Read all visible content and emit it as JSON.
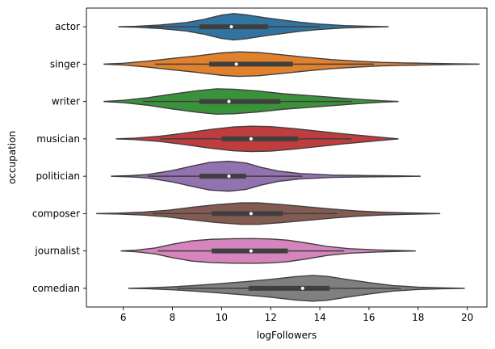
{
  "chart_data": {
    "type": "violin",
    "title": "",
    "xlabel": "logFollowers",
    "ylabel": "occupation",
    "xlim": [
      4.5,
      20.8
    ],
    "xticks": [
      6,
      8,
      10,
      12,
      14,
      16,
      18,
      20
    ],
    "grid": false,
    "categories": [
      "actor",
      "singer",
      "writer",
      "musician",
      "politician",
      "composer",
      "journalist",
      "comedian"
    ],
    "series": [
      {
        "category": "actor",
        "color": "#3274a1",
        "min": 5.8,
        "max": 16.8,
        "q1": 9.1,
        "median": 10.4,
        "q3": 11.9,
        "whisker_low": 7.0,
        "whisker_high": 14.0,
        "density": [
          [
            5.8,
            0.0
          ],
          [
            6.5,
            0.03
          ],
          [
            7.5,
            0.12
          ],
          [
            8.5,
            0.27
          ],
          [
            9.3,
            0.5
          ],
          [
            10.0,
            0.78
          ],
          [
            10.5,
            0.88
          ],
          [
            11.0,
            0.8
          ],
          [
            11.8,
            0.6
          ],
          [
            12.5,
            0.45
          ],
          [
            13.2,
            0.3
          ],
          [
            14.0,
            0.18
          ],
          [
            15.0,
            0.08
          ],
          [
            16.0,
            0.03
          ],
          [
            16.8,
            0.0
          ]
        ]
      },
      {
        "category": "singer",
        "color": "#e1812c",
        "min": 5.2,
        "max": 20.5,
        "q1": 9.5,
        "median": 10.6,
        "q3": 12.9,
        "whisker_low": 7.3,
        "whisker_high": 16.2,
        "density": [
          [
            5.2,
            0.0
          ],
          [
            6.0,
            0.06
          ],
          [
            7.0,
            0.2
          ],
          [
            8.0,
            0.38
          ],
          [
            9.0,
            0.55
          ],
          [
            10.0,
            0.75
          ],
          [
            10.7,
            0.82
          ],
          [
            11.5,
            0.78
          ],
          [
            12.5,
            0.62
          ],
          [
            13.5,
            0.45
          ],
          [
            14.5,
            0.3
          ],
          [
            15.5,
            0.2
          ],
          [
            16.5,
            0.12
          ],
          [
            17.5,
            0.08
          ],
          [
            18.5,
            0.05
          ],
          [
            19.5,
            0.02
          ],
          [
            20.5,
            0.0
          ]
        ]
      },
      {
        "category": "writer",
        "color": "#3a923a",
        "min": 5.2,
        "max": 17.2,
        "q1": 9.1,
        "median": 10.3,
        "q3": 12.4,
        "whisker_low": 6.8,
        "whisker_high": 15.3,
        "density": [
          [
            5.2,
            0.0
          ],
          [
            6.0,
            0.08
          ],
          [
            7.0,
            0.25
          ],
          [
            8.0,
            0.5
          ],
          [
            9.0,
            0.72
          ],
          [
            9.8,
            0.85
          ],
          [
            10.5,
            0.82
          ],
          [
            11.5,
            0.7
          ],
          [
            12.5,
            0.52
          ],
          [
            13.5,
            0.4
          ],
          [
            14.5,
            0.28
          ],
          [
            15.5,
            0.15
          ],
          [
            16.5,
            0.05
          ],
          [
            17.2,
            0.0
          ]
        ]
      },
      {
        "category": "musician",
        "color": "#c03d3e",
        "min": 5.7,
        "max": 17.2,
        "q1": 10.0,
        "median": 11.2,
        "q3": 13.1,
        "whisker_low": 7.5,
        "whisker_high": 15.3,
        "density": [
          [
            5.7,
            0.0
          ],
          [
            6.5,
            0.05
          ],
          [
            7.5,
            0.18
          ],
          [
            8.5,
            0.38
          ],
          [
            9.5,
            0.62
          ],
          [
            10.5,
            0.8
          ],
          [
            11.2,
            0.85
          ],
          [
            12.0,
            0.82
          ],
          [
            13.0,
            0.68
          ],
          [
            14.0,
            0.5
          ],
          [
            15.0,
            0.33
          ],
          [
            16.0,
            0.18
          ],
          [
            16.8,
            0.06
          ],
          [
            17.2,
            0.0
          ]
        ]
      },
      {
        "category": "politician",
        "color": "#9372b2",
        "min": 5.5,
        "max": 18.1,
        "q1": 9.1,
        "median": 10.3,
        "q3": 11.0,
        "whisker_low": 7.0,
        "whisker_high": 13.3,
        "density": [
          [
            5.5,
            0.0
          ],
          [
            6.3,
            0.04
          ],
          [
            7.0,
            0.12
          ],
          [
            8.0,
            0.38
          ],
          [
            8.8,
            0.68
          ],
          [
            9.5,
            0.92
          ],
          [
            10.3,
            1.0
          ],
          [
            11.0,
            0.88
          ],
          [
            11.6,
            0.6
          ],
          [
            12.3,
            0.35
          ],
          [
            13.2,
            0.18
          ],
          [
            14.5,
            0.08
          ],
          [
            16.0,
            0.04
          ],
          [
            17.2,
            0.02
          ],
          [
            18.1,
            0.0
          ]
        ]
      },
      {
        "category": "composer",
        "color": "#845b53",
        "min": 4.9,
        "max": 18.9,
        "q1": 9.6,
        "median": 11.2,
        "q3": 12.5,
        "whisker_low": 7.2,
        "whisker_high": 14.7,
        "density": [
          [
            4.9,
            0.0
          ],
          [
            5.8,
            0.03
          ],
          [
            6.8,
            0.1
          ],
          [
            7.8,
            0.22
          ],
          [
            8.8,
            0.42
          ],
          [
            9.8,
            0.6
          ],
          [
            10.8,
            0.72
          ],
          [
            11.5,
            0.72
          ],
          [
            12.5,
            0.6
          ],
          [
            13.5,
            0.45
          ],
          [
            14.5,
            0.3
          ],
          [
            15.5,
            0.18
          ],
          [
            16.5,
            0.1
          ],
          [
            17.5,
            0.05
          ],
          [
            18.3,
            0.02
          ],
          [
            18.9,
            0.0
          ]
        ]
      },
      {
        "category": "journalist",
        "color": "#d684bd",
        "min": 5.9,
        "max": 17.9,
        "q1": 9.6,
        "median": 11.2,
        "q3": 12.7,
        "whisker_low": 7.4,
        "whisker_high": 15.0,
        "density": [
          [
            5.9,
            0.0
          ],
          [
            6.5,
            0.05
          ],
          [
            7.3,
            0.2
          ],
          [
            8.0,
            0.45
          ],
          [
            8.8,
            0.68
          ],
          [
            9.6,
            0.78
          ],
          [
            10.5,
            0.82
          ],
          [
            11.3,
            0.83
          ],
          [
            12.0,
            0.8
          ],
          [
            12.7,
            0.72
          ],
          [
            13.5,
            0.52
          ],
          [
            14.3,
            0.3
          ],
          [
            15.2,
            0.15
          ],
          [
            16.3,
            0.07
          ],
          [
            17.2,
            0.03
          ],
          [
            17.9,
            0.0
          ]
        ]
      },
      {
        "category": "comedian",
        "color": "#7f7f7f",
        "min": 6.2,
        "max": 19.9,
        "q1": 11.1,
        "median": 13.3,
        "q3": 14.4,
        "whisker_low": 8.2,
        "whisker_high": 17.3,
        "density": [
          [
            6.2,
            0.0
          ],
          [
            7.0,
            0.03
          ],
          [
            8.0,
            0.1
          ],
          [
            9.0,
            0.2
          ],
          [
            10.0,
            0.32
          ],
          [
            11.0,
            0.45
          ],
          [
            12.0,
            0.6
          ],
          [
            13.0,
            0.78
          ],
          [
            13.7,
            0.86
          ],
          [
            14.3,
            0.8
          ],
          [
            15.0,
            0.62
          ],
          [
            16.0,
            0.38
          ],
          [
            17.0,
            0.18
          ],
          [
            18.0,
            0.08
          ],
          [
            19.0,
            0.03
          ],
          [
            19.9,
            0.0
          ]
        ]
      }
    ]
  }
}
